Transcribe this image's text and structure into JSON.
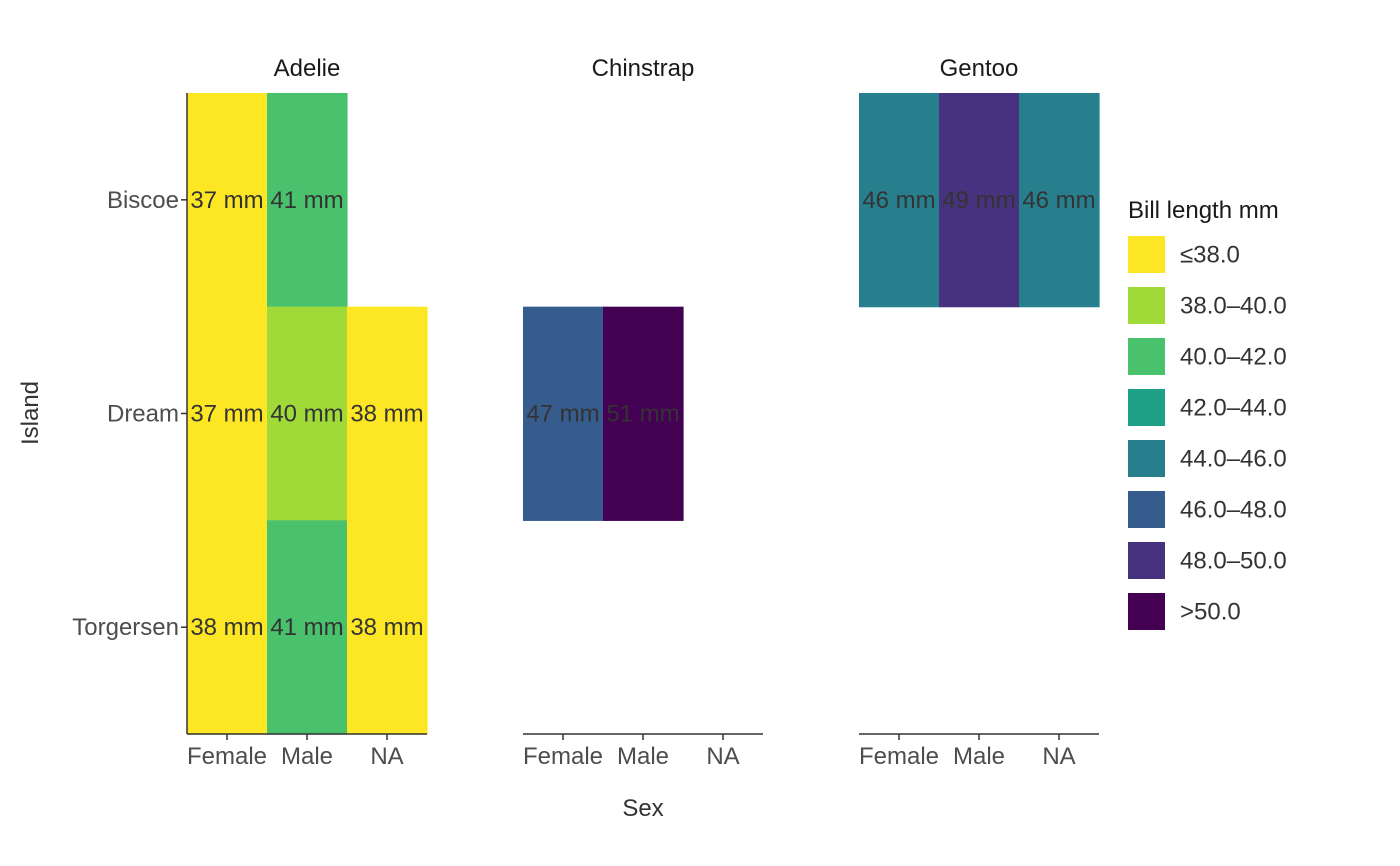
{
  "chart_data": {
    "type": "heatmap",
    "xlabel": "Sex",
    "ylabel": "Island",
    "x_categories": [
      "Female",
      "Male",
      "NA"
    ],
    "y_categories": [
      "Biscoe",
      "Dream",
      "Torgersen"
    ],
    "facets": [
      {
        "name": "Adelie",
        "cells": [
          {
            "island": "Biscoe",
            "sex": "Female",
            "value": 37,
            "label": "37 mm"
          },
          {
            "island": "Biscoe",
            "sex": "Male",
            "value": 41,
            "label": "41 mm"
          },
          {
            "island": "Dream",
            "sex": "Female",
            "value": 37,
            "label": "37 mm"
          },
          {
            "island": "Dream",
            "sex": "Male",
            "value": 40,
            "label": "40 mm"
          },
          {
            "island": "Dream",
            "sex": "NA",
            "value": 38,
            "label": "38 mm"
          },
          {
            "island": "Torgersen",
            "sex": "Female",
            "value": 38,
            "label": "38 mm"
          },
          {
            "island": "Torgersen",
            "sex": "Male",
            "value": 41,
            "label": "41 mm"
          },
          {
            "island": "Torgersen",
            "sex": "NA",
            "value": 38,
            "label": "38 mm"
          }
        ]
      },
      {
        "name": "Chinstrap",
        "cells": [
          {
            "island": "Dream",
            "sex": "Female",
            "value": 47,
            "label": "47 mm"
          },
          {
            "island": "Dream",
            "sex": "Male",
            "value": 51,
            "label": "51 mm"
          }
        ]
      },
      {
        "name": "Gentoo",
        "cells": [
          {
            "island": "Biscoe",
            "sex": "Female",
            "value": 46,
            "label": "46 mm"
          },
          {
            "island": "Biscoe",
            "sex": "Male",
            "value": 49,
            "label": "49 mm"
          },
          {
            "island": "Biscoe",
            "sex": "NA",
            "value": 46,
            "label": "46 mm"
          }
        ]
      }
    ],
    "legend": {
      "title": "Bill length mm",
      "placement": "right",
      "bins": [
        {
          "label": "≤38.0",
          "color": "#FDE725"
        },
        {
          "label": "38.0–40.0",
          "color": "#A0DA39"
        },
        {
          "label": "40.0–42.0",
          "color": "#4AC16D"
        },
        {
          "label": "42.0–44.0",
          "color": "#1FA187"
        },
        {
          "label": "44.0–46.0",
          "color": "#277F8E"
        },
        {
          "label": "46.0–48.0",
          "color": "#365C8D"
        },
        {
          "label": "48.0–50.0",
          "color": "#46327E"
        },
        {
          "label": ">50.0",
          "color": "#440154"
        }
      ]
    },
    "grid": false
  }
}
